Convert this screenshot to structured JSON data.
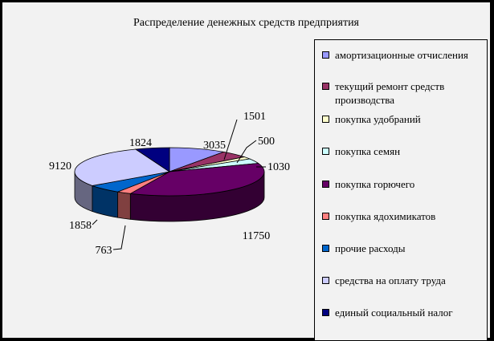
{
  "chart_data": {
    "type": "pie",
    "title": "Распределение денежных средств предприятия",
    "three_d": true,
    "legend_position": "right",
    "slices": [
      {
        "label": "амортизационные отчисления",
        "value": 3035,
        "color": "#9999ff"
      },
      {
        "label": "текущий ремонт средств производства",
        "value": 1501,
        "color": "#993366"
      },
      {
        "label": "покупка удобраний",
        "value": 500,
        "color": "#ffffcc"
      },
      {
        "label": "покупка семян",
        "value": 1030,
        "color": "#ccffff"
      },
      {
        "label": "покупка горючего",
        "value": 11750,
        "color": "#660066"
      },
      {
        "label": "покупка ядохимикатов",
        "value": 763,
        "color": "#ff8080"
      },
      {
        "label": "прочие расходы",
        "value": 1858,
        "color": "#0066cc"
      },
      {
        "label": "средства на оплату труда",
        "value": 9120,
        "color": "#ccccff"
      },
      {
        "label": "единый социальный налог",
        "value": 1824,
        "color": "#000080"
      }
    ]
  }
}
